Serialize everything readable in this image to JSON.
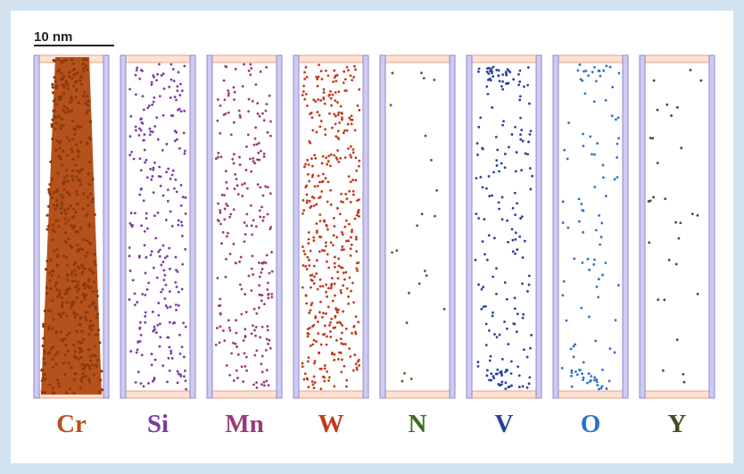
{
  "scale_bar": {
    "label": "10 nm"
  },
  "panels": [
    {
      "label": "Cr",
      "color": "#b5521b"
    },
    {
      "label": "Si",
      "color": "#7a3aa8"
    },
    {
      "label": "Mn",
      "color": "#9a3a7a"
    },
    {
      "label": "W",
      "color": "#c23a1c"
    },
    {
      "label": "N",
      "color": "#3d6b2a"
    },
    {
      "label": "V",
      "color": "#2a40a0"
    },
    {
      "label": "O",
      "color": "#2a72c8"
    },
    {
      "label": "Y",
      "color": "#4a4a22"
    }
  ]
}
